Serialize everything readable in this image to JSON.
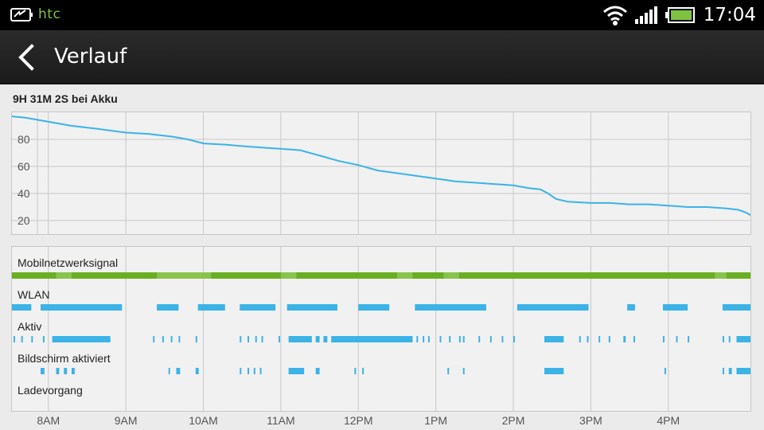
{
  "status_bar": {
    "brand": "htc",
    "time": "17:04",
    "icons": [
      "htc-logo-icon",
      "wifi-icon",
      "cellular-signal-icon",
      "battery-icon"
    ]
  },
  "action_bar": {
    "title": "Verlauf",
    "back_icon": "chevron-left-icon"
  },
  "summary": "9H 31M 2S bei Akku",
  "colors": {
    "line": "#3bb3e6",
    "signal_green": "#6aae22",
    "signal_light": "#9fd068",
    "grid": "#c8c8c8"
  },
  "chart_data": {
    "type": "line",
    "title": "",
    "xlabel": "",
    "ylabel": "",
    "ylim": [
      10,
      100
    ],
    "y_ticks": [
      "80",
      "60",
      "40",
      "20"
    ],
    "x_tick_labels": [
      "8AM",
      "9AM",
      "10AM",
      "11AM",
      "12PM",
      "1PM",
      "2PM",
      "3PM",
      "4PM"
    ],
    "x_range_hours": [
      7.53,
      17.06
    ],
    "series": [
      {
        "x": [
          7.53,
          7.7,
          8.0,
          8.3,
          8.6,
          9.0,
          9.3,
          9.6,
          9.8,
          10.0,
          10.3,
          10.5,
          10.75,
          11.0,
          11.25,
          11.5,
          11.75,
          12.0,
          12.25,
          12.5,
          12.75,
          13.0,
          13.25,
          13.5,
          13.75,
          14.0,
          14.2,
          14.35,
          14.45,
          14.55,
          14.7,
          15.0,
          15.25,
          15.5,
          15.75,
          16.0,
          16.25,
          16.5,
          16.75,
          16.9,
          17.0,
          17.06
        ],
        "y": [
          97,
          96,
          93,
          90,
          88,
          85,
          84,
          82,
          80,
          77,
          76,
          75,
          74,
          73,
          72,
          68,
          64,
          61,
          57,
          55,
          53,
          51,
          49,
          48,
          47,
          46,
          44,
          43,
          40,
          36,
          34,
          33,
          33,
          32,
          32,
          31,
          30,
          30,
          29,
          28,
          26,
          24
        ]
      }
    ]
  },
  "activity": {
    "rows": [
      {
        "label": "Mobilnetzwerksignal",
        "type": "signal",
        "light_segments": [
          [
            8.1,
            8.3
          ],
          [
            9.4,
            10.1
          ],
          [
            11.0,
            11.2
          ],
          [
            12.5,
            12.7
          ],
          [
            13.1,
            13.3
          ],
          [
            16.6,
            16.75
          ]
        ]
      },
      {
        "label": "WLAN",
        "type": "wifi",
        "segments": [
          [
            7.53,
            7.78
          ],
          [
            7.9,
            8.95
          ],
          [
            9.4,
            9.68
          ],
          [
            9.93,
            10.28
          ],
          [
            10.47,
            10.93
          ],
          [
            11.08,
            11.73
          ],
          [
            12.0,
            12.4
          ],
          [
            12.73,
            13.65
          ],
          [
            14.05,
            14.97
          ],
          [
            15.47,
            15.57
          ],
          [
            15.93,
            16.25
          ],
          [
            16.7,
            17.06
          ]
        ]
      },
      {
        "label": "Aktiv",
        "type": "ticks",
        "segments": [
          [
            7.55,
            7.57
          ],
          [
            7.65,
            7.67
          ],
          [
            7.78,
            7.8
          ],
          [
            7.93,
            7.95
          ],
          [
            8.05,
            8.8
          ],
          [
            9.35,
            9.37
          ],
          [
            9.47,
            9.49
          ],
          [
            9.58,
            9.6
          ],
          [
            9.68,
            9.7
          ],
          [
            9.9,
            9.92
          ],
          [
            10.47,
            10.49
          ],
          [
            10.57,
            10.59
          ],
          [
            10.67,
            10.69
          ],
          [
            10.75,
            10.77
          ],
          [
            10.97,
            10.99
          ],
          [
            11.1,
            11.4
          ],
          [
            11.45,
            11.5
          ],
          [
            11.55,
            11.6
          ],
          [
            11.65,
            12.7
          ],
          [
            12.75,
            12.77
          ],
          [
            12.83,
            12.85
          ],
          [
            12.9,
            12.92
          ],
          [
            13.05,
            13.07
          ],
          [
            13.17,
            13.19
          ],
          [
            13.3,
            13.32
          ],
          [
            13.35,
            13.37
          ],
          [
            13.55,
            13.57
          ],
          [
            13.7,
            13.72
          ],
          [
            13.85,
            13.87
          ],
          [
            14.0,
            14.02
          ],
          [
            14.4,
            14.65
          ],
          [
            14.85,
            14.87
          ],
          [
            14.95,
            14.97
          ],
          [
            15.1,
            15.12
          ],
          [
            15.23,
            15.25
          ],
          [
            15.42,
            15.45
          ],
          [
            15.55,
            15.57
          ],
          [
            15.93,
            15.95
          ],
          [
            16.1,
            16.12
          ],
          [
            16.25,
            16.27
          ],
          [
            16.7,
            16.72
          ],
          [
            16.78,
            16.8
          ],
          [
            16.88,
            17.06
          ]
        ]
      },
      {
        "label": "Bildschirm aktiviert",
        "type": "ticks",
        "segments": [
          [
            7.9,
            7.95
          ],
          [
            8.1,
            8.14
          ],
          [
            8.2,
            8.24
          ],
          [
            8.3,
            8.34
          ],
          [
            9.55,
            9.57
          ],
          [
            9.65,
            9.7
          ],
          [
            9.9,
            9.94
          ],
          [
            10.47,
            10.49
          ],
          [
            10.57,
            10.59
          ],
          [
            10.65,
            10.67
          ],
          [
            10.73,
            10.75
          ],
          [
            11.1,
            11.3
          ],
          [
            11.45,
            11.5
          ],
          [
            11.95,
            11.97
          ],
          [
            12.05,
            12.07
          ],
          [
            13.15,
            13.17
          ],
          [
            13.35,
            13.37
          ],
          [
            14.4,
            14.65
          ],
          [
            15.95,
            15.97
          ],
          [
            16.7,
            16.72
          ],
          [
            16.78,
            16.82
          ],
          [
            16.88,
            17.06
          ]
        ]
      },
      {
        "label": "Ladevorgang",
        "type": "ticks",
        "segments": []
      }
    ]
  }
}
